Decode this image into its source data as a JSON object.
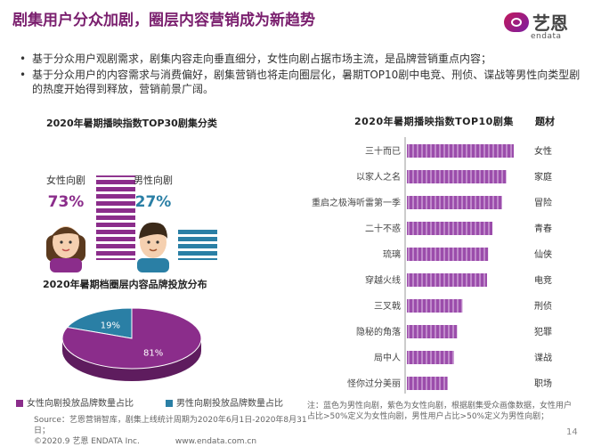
{
  "title": "剧集用户分众加剧，圈层内容营销成为新趋势",
  "logo": {
    "cn": "艺恩",
    "en": "endata"
  },
  "bullets": [
    "基于分众用户观剧需求，剧集内容走向垂直细分，女性向剧占据市场主流，是品牌营销重点内容；",
    "基于分众用户的内容需求与消费偏好，剧集营销也将走向圈层化，暑期TOP10剧中电竞、刑侦、谍战等男性向类型剧的热度开始得到释放，营销前景广阔。"
  ],
  "colors": {
    "female": "#8b2d8b",
    "male": "#2a7fa5",
    "bar": "#9b4dab",
    "title": "#7a1f6e"
  },
  "chart_data": [
    {
      "type": "bar",
      "title": "2020年暑期播映指数TOP30剧集分类",
      "categories": [
        "女性向剧",
        "男性向剧"
      ],
      "values": [
        73,
        27
      ],
      "value_labels": [
        "73%",
        "27%"
      ],
      "icons": [
        "female-icon",
        "male-icon"
      ]
    },
    {
      "type": "pie",
      "title": "2020年暑期档圈层内容品牌投放分布",
      "categories": [
        "女性向剧投放品牌数量占比",
        "男性向剧投放品牌数量占比"
      ],
      "values": [
        81,
        19
      ],
      "value_labels": [
        "81%",
        "19%"
      ],
      "legend": "bottom"
    },
    {
      "type": "bar",
      "orientation": "horizontal",
      "title": "2020年暑期播映指数TOP10剧集",
      "genre_header": "题材",
      "categories": [
        "三十而已",
        "以家人之名",
        "重启之极海听雷第一季",
        "二十不惑",
        "琉璃",
        "穿越火线",
        "三叉戟",
        "隐秘的角落",
        "局中人",
        "怪你过分美丽"
      ],
      "genres": [
        "女性",
        "家庭",
        "冒险",
        "青春",
        "仙侠",
        "电竞",
        "刑侦",
        "犯罪",
        "谍战",
        "职场"
      ],
      "audience": [
        "female",
        "female",
        "male",
        "female",
        "female",
        "male",
        "male",
        "male",
        "male",
        "female"
      ],
      "values": [
        100,
        93,
        89,
        80,
        76,
        75,
        52,
        47,
        44,
        38
      ]
    }
  ],
  "note": "注：蓝色为男性向剧，紫色为女性向剧，根据剧集受众画像数据，女性用户占比>50%定义为女性向剧，男性用户占比>50%定义为男性向剧；",
  "source": "Source：艺恩营销智库，剧集上线统计周期为2020年6月1日-2020年8月31日；",
  "copyright": "©2020.9 艺恩 ENDATA Inc.",
  "website": "www.endata.com.cn",
  "page_number": "14"
}
